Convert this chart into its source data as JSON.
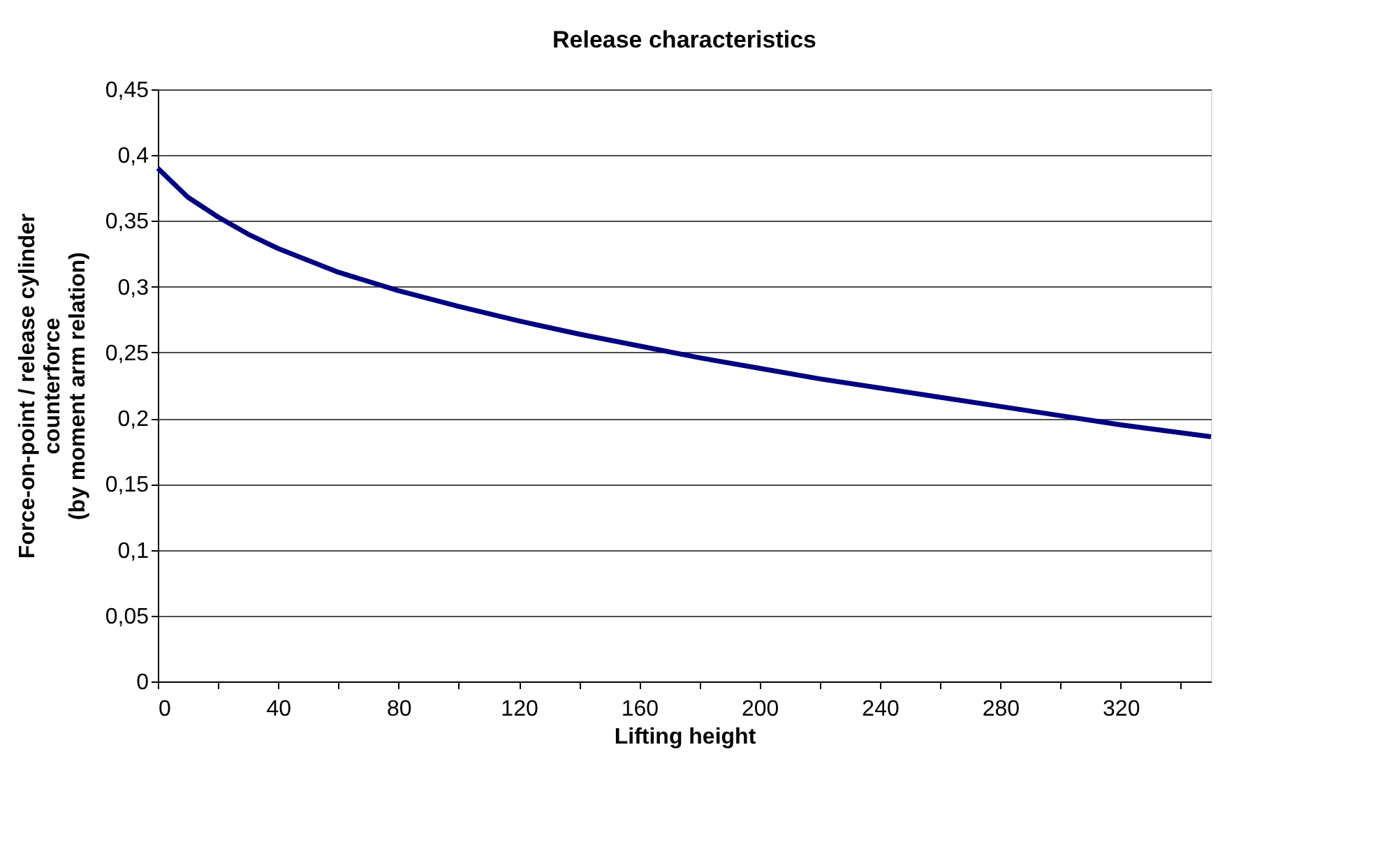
{
  "chart_data": {
    "type": "line",
    "title": "Release characteristics",
    "xlabel": "Lifting height",
    "ylabel": "Force-on-point / release cylinder\ncounterforce\n(by moment arm relation)",
    "x": [
      0,
      10,
      20,
      30,
      40,
      60,
      80,
      100,
      120,
      140,
      160,
      180,
      200,
      220,
      240,
      260,
      280,
      300,
      320,
      350
    ],
    "series": [
      {
        "color": "#000080",
        "values": [
          0.39,
          0.368,
          0.353,
          0.34,
          0.329,
          0.311,
          0.297,
          0.285,
          0.274,
          0.264,
          0.255,
          0.246,
          0.238,
          0.23,
          0.223,
          0.216,
          0.209,
          0.202,
          0.195,
          0.186
        ]
      }
    ],
    "xlim": [
      0,
      350
    ],
    "xticks": [
      0,
      {
        "value": 20,
        "label": null
      },
      40,
      {
        "value": 60,
        "label": null
      },
      80,
      {
        "value": 100,
        "label": null
      },
      120,
      {
        "value": 140,
        "label": null
      },
      160,
      {
        "value": 180,
        "label": null
      },
      200,
      {
        "value": 220,
        "label": null
      },
      240,
      {
        "value": 260,
        "label": null
      },
      280,
      {
        "value": 300,
        "label": null
      },
      320,
      {
        "value": 340,
        "label": null
      }
    ],
    "ylim": [
      0,
      0.45
    ],
    "yticks": [
      0,
      {
        "value": 0.05,
        "label": "0,05"
      },
      {
        "value": 0.1,
        "label": "0,1"
      },
      {
        "value": 0.15,
        "label": "0,15"
      },
      {
        "value": 0.2,
        "label": "0,2"
      },
      {
        "value": 0.25,
        "label": "0,25"
      },
      {
        "value": 0.3,
        "label": "0,3"
      },
      {
        "value": 0.35,
        "label": "0,35"
      },
      {
        "value": 0.4,
        "label": "0,4"
      },
      {
        "value": 0.45,
        "label": "0,45"
      }
    ],
    "grid": "y",
    "legend": false,
    "marker": "none",
    "line_style": "solid"
  }
}
